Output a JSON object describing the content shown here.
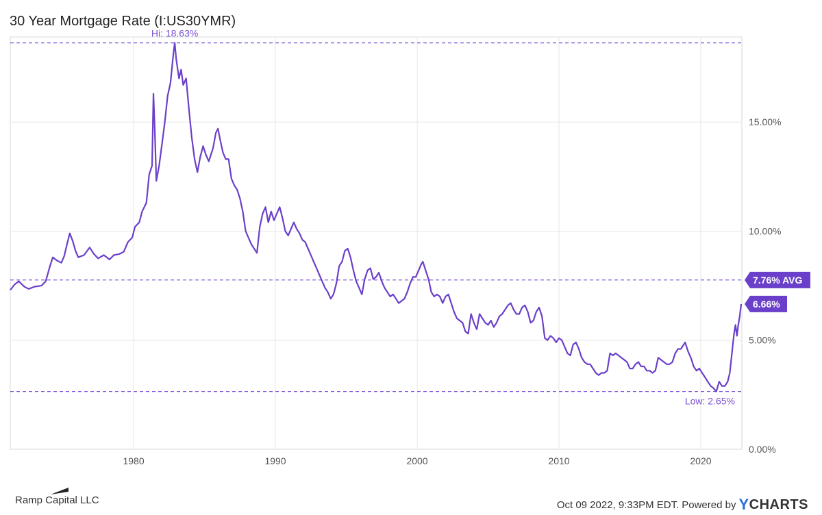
{
  "header": {
    "title": "30 Year Mortgage Rate (I:US30YMR)"
  },
  "footer": {
    "brand": "Ramp Capital LLC",
    "timestamp": "Oct 09 2022, 9:33PM EDT.",
    "powered_by": "Powered by",
    "provider_y": "Y",
    "provider_rest": "CHARTS"
  },
  "colors": {
    "line": "#6a3fc9",
    "ref": "#7b4fd6",
    "grid": "#e6e6e6",
    "badge": "#6a3fc9"
  },
  "chart_data": {
    "type": "line",
    "title": "30 Year Mortgage Rate (I:US30YMR)",
    "xlim": [
      1971.3,
      2022.9
    ],
    "ylim": [
      0,
      18.9
    ],
    "x_ticks": [
      1980,
      1990,
      2000,
      2010,
      2020
    ],
    "y_ticks": [
      0,
      5,
      10,
      15
    ],
    "y_tick_labels": [
      "0.00%",
      "5.00%",
      "10.00%",
      "15.00%"
    ],
    "grid": true,
    "reference_lines": [
      {
        "value": 18.63,
        "label": "Hi: 18.63%",
        "position": "top"
      },
      {
        "value": 2.65,
        "label": "Low: 2.65%",
        "position": "bottom-right"
      },
      {
        "value": 7.76,
        "label": "7.76% AVG",
        "position": "right-badge"
      }
    ],
    "last_value_label": "6.66%",
    "last_value": 6.66,
    "series": [
      {
        "points": [
          [
            1971.3,
            7.3
          ],
          [
            1971.6,
            7.55
          ],
          [
            1971.9,
            7.7
          ],
          [
            1972.3,
            7.45
          ],
          [
            1972.6,
            7.35
          ],
          [
            1973.0,
            7.45
          ],
          [
            1973.5,
            7.5
          ],
          [
            1973.8,
            7.7
          ],
          [
            1974.1,
            8.4
          ],
          [
            1974.3,
            8.8
          ],
          [
            1974.6,
            8.65
          ],
          [
            1974.9,
            8.55
          ],
          [
            1975.1,
            8.85
          ],
          [
            1975.3,
            9.4
          ],
          [
            1975.5,
            9.9
          ],
          [
            1975.7,
            9.55
          ],
          [
            1975.9,
            9.1
          ],
          [
            1976.1,
            8.8
          ],
          [
            1976.5,
            8.9
          ],
          [
            1976.9,
            9.25
          ],
          [
            1977.2,
            8.95
          ],
          [
            1977.5,
            8.75
          ],
          [
            1977.9,
            8.9
          ],
          [
            1978.3,
            8.7
          ],
          [
            1978.6,
            8.9
          ],
          [
            1979.0,
            8.95
          ],
          [
            1979.3,
            9.05
          ],
          [
            1979.6,
            9.5
          ],
          [
            1979.9,
            9.7
          ],
          [
            1980.1,
            10.2
          ],
          [
            1980.4,
            10.4
          ],
          [
            1980.6,
            10.9
          ],
          [
            1980.9,
            11.3
          ],
          [
            1981.1,
            12.6
          ],
          [
            1981.3,
            13.0
          ],
          [
            1981.4,
            16.3
          ],
          [
            1981.5,
            14.5
          ],
          [
            1981.6,
            12.3
          ],
          [
            1981.8,
            13.0
          ],
          [
            1982.0,
            14.0
          ],
          [
            1982.2,
            15.0
          ],
          [
            1982.4,
            16.2
          ],
          [
            1982.6,
            16.8
          ],
          [
            1982.8,
            18.1
          ],
          [
            1982.9,
            18.63
          ],
          [
            1983.0,
            17.9
          ],
          [
            1983.2,
            17.0
          ],
          [
            1983.35,
            17.4
          ],
          [
            1983.5,
            16.7
          ],
          [
            1983.7,
            17.0
          ],
          [
            1983.9,
            15.6
          ],
          [
            1984.1,
            14.3
          ],
          [
            1984.3,
            13.3
          ],
          [
            1984.5,
            12.7
          ],
          [
            1984.7,
            13.4
          ],
          [
            1984.9,
            13.9
          ],
          [
            1985.1,
            13.5
          ],
          [
            1985.3,
            13.2
          ],
          [
            1985.6,
            13.8
          ],
          [
            1985.8,
            14.5
          ],
          [
            1985.95,
            14.7
          ],
          [
            1986.1,
            14.2
          ],
          [
            1986.3,
            13.6
          ],
          [
            1986.5,
            13.3
          ],
          [
            1986.7,
            13.3
          ],
          [
            1986.9,
            12.4
          ],
          [
            1987.1,
            12.1
          ],
          [
            1987.3,
            11.9
          ],
          [
            1987.5,
            11.5
          ],
          [
            1987.7,
            10.9
          ],
          [
            1987.9,
            10.0
          ],
          [
            1988.1,
            9.7
          ],
          [
            1988.3,
            9.4
          ],
          [
            1988.5,
            9.2
          ],
          [
            1988.7,
            9.0
          ],
          [
            1988.9,
            10.2
          ],
          [
            1989.1,
            10.8
          ],
          [
            1989.3,
            11.1
          ],
          [
            1989.5,
            10.4
          ],
          [
            1989.7,
            10.9
          ],
          [
            1989.9,
            10.5
          ],
          [
            1990.1,
            10.8
          ],
          [
            1990.3,
            11.1
          ],
          [
            1990.5,
            10.6
          ],
          [
            1990.7,
            10.0
          ],
          [
            1990.9,
            9.8
          ],
          [
            1991.1,
            10.1
          ],
          [
            1991.3,
            10.4
          ],
          [
            1991.5,
            10.1
          ],
          [
            1991.7,
            9.9
          ],
          [
            1991.9,
            9.6
          ],
          [
            1992.1,
            9.5
          ],
          [
            1992.3,
            9.2
          ],
          [
            1992.5,
            8.9
          ],
          [
            1992.7,
            8.6
          ],
          [
            1992.9,
            8.3
          ],
          [
            1993.1,
            8.0
          ],
          [
            1993.3,
            7.7
          ],
          [
            1993.5,
            7.4
          ],
          [
            1993.7,
            7.2
          ],
          [
            1993.9,
            6.9
          ],
          [
            1994.1,
            7.1
          ],
          [
            1994.3,
            7.6
          ],
          [
            1994.5,
            8.4
          ],
          [
            1994.7,
            8.6
          ],
          [
            1994.9,
            9.1
          ],
          [
            1995.1,
            9.2
          ],
          [
            1995.3,
            8.8
          ],
          [
            1995.5,
            8.2
          ],
          [
            1995.7,
            7.7
          ],
          [
            1995.9,
            7.4
          ],
          [
            1996.1,
            7.1
          ],
          [
            1996.3,
            7.8
          ],
          [
            1996.5,
            8.2
          ],
          [
            1996.7,
            8.3
          ],
          [
            1996.9,
            7.8
          ],
          [
            1997.1,
            7.9
          ],
          [
            1997.3,
            8.1
          ],
          [
            1997.5,
            7.7
          ],
          [
            1997.7,
            7.4
          ],
          [
            1997.9,
            7.2
          ],
          [
            1998.1,
            7.0
          ],
          [
            1998.3,
            7.1
          ],
          [
            1998.5,
            6.9
          ],
          [
            1998.7,
            6.7
          ],
          [
            1998.9,
            6.8
          ],
          [
            1999.1,
            6.9
          ],
          [
            1999.3,
            7.2
          ],
          [
            1999.5,
            7.6
          ],
          [
            1999.7,
            7.9
          ],
          [
            1999.9,
            7.9
          ],
          [
            2000.1,
            8.2
          ],
          [
            2000.3,
            8.5
          ],
          [
            2000.4,
            8.6
          ],
          [
            2000.6,
            8.2
          ],
          [
            2000.8,
            7.8
          ],
          [
            2001.0,
            7.2
          ],
          [
            2001.2,
            7.0
          ],
          [
            2001.4,
            7.1
          ],
          [
            2001.6,
            7.0
          ],
          [
            2001.8,
            6.7
          ],
          [
            2002.0,
            7.0
          ],
          [
            2002.2,
            7.1
          ],
          [
            2002.4,
            6.7
          ],
          [
            2002.6,
            6.3
          ],
          [
            2002.8,
            6.0
          ],
          [
            2003.0,
            5.9
          ],
          [
            2003.2,
            5.8
          ],
          [
            2003.4,
            5.4
          ],
          [
            2003.6,
            5.3
          ],
          [
            2003.8,
            6.2
          ],
          [
            2004.0,
            5.8
          ],
          [
            2004.2,
            5.5
          ],
          [
            2004.4,
            6.2
          ],
          [
            2004.6,
            6.0
          ],
          [
            2004.8,
            5.8
          ],
          [
            2005.0,
            5.7
          ],
          [
            2005.2,
            5.9
          ],
          [
            2005.4,
            5.6
          ],
          [
            2005.6,
            5.8
          ],
          [
            2005.8,
            6.1
          ],
          [
            2006.0,
            6.2
          ],
          [
            2006.2,
            6.4
          ],
          [
            2006.4,
            6.6
          ],
          [
            2006.6,
            6.7
          ],
          [
            2006.8,
            6.4
          ],
          [
            2007.0,
            6.2
          ],
          [
            2007.2,
            6.2
          ],
          [
            2007.4,
            6.5
          ],
          [
            2007.6,
            6.6
          ],
          [
            2007.8,
            6.3
          ],
          [
            2008.0,
            5.8
          ],
          [
            2008.2,
            5.9
          ],
          [
            2008.4,
            6.3
          ],
          [
            2008.6,
            6.5
          ],
          [
            2008.8,
            6.1
          ],
          [
            2009.0,
            5.1
          ],
          [
            2009.2,
            5.0
          ],
          [
            2009.4,
            5.2
          ],
          [
            2009.6,
            5.1
          ],
          [
            2009.8,
            4.9
          ],
          [
            2010.0,
            5.1
          ],
          [
            2010.2,
            5.0
          ],
          [
            2010.4,
            4.7
          ],
          [
            2010.6,
            4.4
          ],
          [
            2010.8,
            4.3
          ],
          [
            2011.0,
            4.8
          ],
          [
            2011.2,
            4.9
          ],
          [
            2011.4,
            4.6
          ],
          [
            2011.6,
            4.2
          ],
          [
            2011.8,
            4.0
          ],
          [
            2012.0,
            3.9
          ],
          [
            2012.2,
            3.9
          ],
          [
            2012.4,
            3.7
          ],
          [
            2012.6,
            3.5
          ],
          [
            2012.8,
            3.4
          ],
          [
            2013.0,
            3.5
          ],
          [
            2013.2,
            3.5
          ],
          [
            2013.4,
            3.6
          ],
          [
            2013.6,
            4.4
          ],
          [
            2013.8,
            4.3
          ],
          [
            2014.0,
            4.4
          ],
          [
            2014.2,
            4.3
          ],
          [
            2014.4,
            4.2
          ],
          [
            2014.6,
            4.1
          ],
          [
            2014.8,
            4.0
          ],
          [
            2015.0,
            3.7
          ],
          [
            2015.2,
            3.7
          ],
          [
            2015.4,
            3.9
          ],
          [
            2015.6,
            4.0
          ],
          [
            2015.8,
            3.8
          ],
          [
            2016.0,
            3.8
          ],
          [
            2016.2,
            3.6
          ],
          [
            2016.4,
            3.6
          ],
          [
            2016.6,
            3.5
          ],
          [
            2016.8,
            3.6
          ],
          [
            2017.0,
            4.2
          ],
          [
            2017.2,
            4.1
          ],
          [
            2017.4,
            4.0
          ],
          [
            2017.6,
            3.9
          ],
          [
            2017.8,
            3.9
          ],
          [
            2018.0,
            4.0
          ],
          [
            2018.2,
            4.4
          ],
          [
            2018.4,
            4.6
          ],
          [
            2018.6,
            4.6
          ],
          [
            2018.9,
            4.9
          ],
          [
            2019.1,
            4.5
          ],
          [
            2019.3,
            4.2
          ],
          [
            2019.5,
            3.8
          ],
          [
            2019.7,
            3.6
          ],
          [
            2019.9,
            3.7
          ],
          [
            2020.1,
            3.5
          ],
          [
            2020.3,
            3.3
          ],
          [
            2020.5,
            3.1
          ],
          [
            2020.7,
            2.9
          ],
          [
            2020.9,
            2.8
          ],
          [
            2021.1,
            2.65
          ],
          [
            2021.3,
            3.1
          ],
          [
            2021.5,
            2.9
          ],
          [
            2021.7,
            2.9
          ],
          [
            2021.9,
            3.1
          ],
          [
            2022.05,
            3.5
          ],
          [
            2022.15,
            4.1
          ],
          [
            2022.25,
            4.7
          ],
          [
            2022.35,
            5.3
          ],
          [
            2022.45,
            5.7
          ],
          [
            2022.55,
            5.2
          ],
          [
            2022.65,
            5.7
          ],
          [
            2022.75,
            6.1
          ],
          [
            2022.85,
            6.66
          ]
        ]
      }
    ]
  }
}
